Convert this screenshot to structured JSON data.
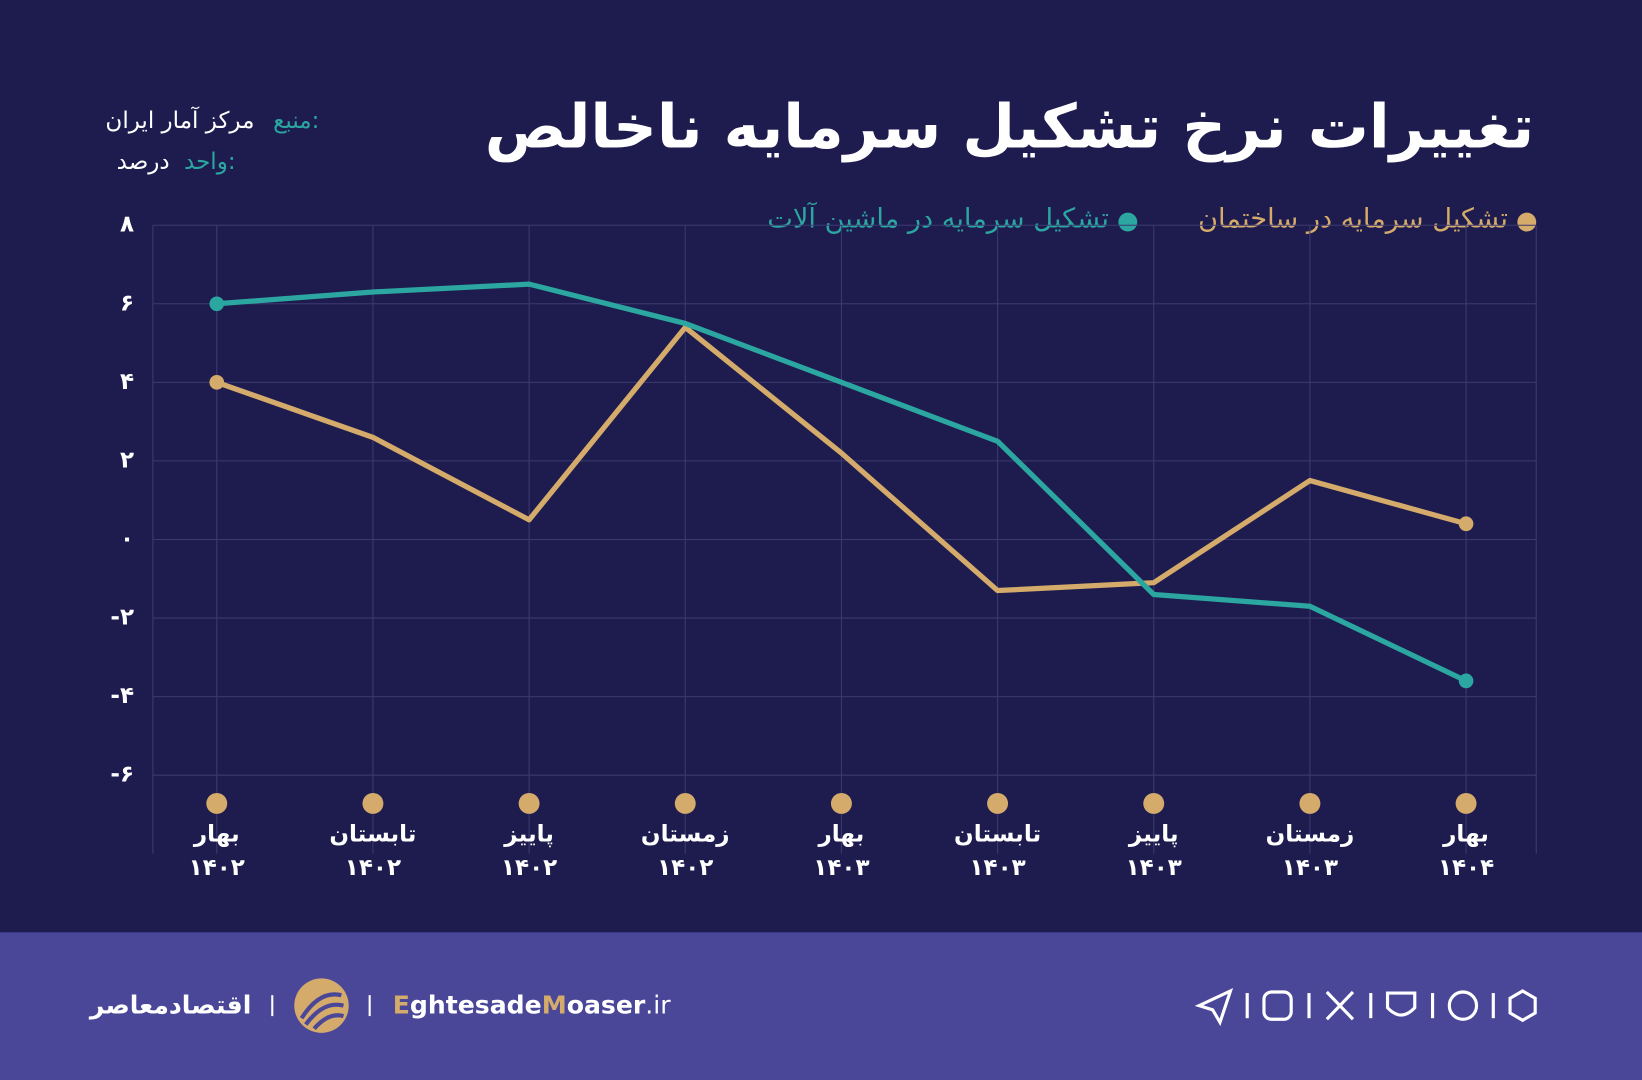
{
  "chart_data": {
    "type": "line",
    "title": "تغییرات نرخ تشکیل سرمایه ناخالص",
    "source_label": "منبع:",
    "source": "مرکز آمار ایران",
    "unit_label": "واحد:",
    "unit": "درصد",
    "categories": [
      [
        "بهار",
        "۱۴۰۲"
      ],
      [
        "تابستان",
        "۱۴۰۲"
      ],
      [
        "پاییز",
        "۱۴۰۲"
      ],
      [
        "زمستان",
        "۱۴۰۲"
      ],
      [
        "بهار",
        "۱۴۰۳"
      ],
      [
        "تابستان",
        "۱۴۰۳"
      ],
      [
        "پاییز",
        "۱۴۰۳"
      ],
      [
        "زمستان",
        "۱۴۰۳"
      ],
      [
        "بهار",
        "۱۴۰۴"
      ]
    ],
    "series": [
      {
        "name": "تشکیل سرمایه در ساختمان",
        "color": "#d4ab6a",
        "values": [
          4.0,
          2.6,
          0.5,
          5.4,
          2.2,
          -1.3,
          -1.1,
          1.5,
          0.4
        ]
      },
      {
        "name": "تشکیل سرمایه در ماشین آلات",
        "color": "#2ba6a0",
        "values": [
          6.0,
          6.3,
          6.5,
          5.5,
          4.0,
          2.5,
          -1.4,
          -1.7,
          -3.6
        ]
      }
    ],
    "ylim": [
      -6,
      8
    ],
    "yticks": [
      {
        "value": 8,
        "label": "۸"
      },
      {
        "value": 6,
        "label": "۶"
      },
      {
        "value": 4,
        "label": "۴"
      },
      {
        "value": 2,
        "label": "۲"
      },
      {
        "value": 0,
        "label": "۰"
      },
      {
        "value": -2,
        "label": "-۲"
      },
      {
        "value": -4,
        "label": "-۴"
      },
      {
        "value": -6,
        "label": "-۶"
      }
    ],
    "grid": true
  },
  "footer": {
    "brand": "اقتصادمعاصر",
    "site": [
      "E",
      "ghtesade",
      "M",
      "oaser",
      ".ir"
    ]
  }
}
